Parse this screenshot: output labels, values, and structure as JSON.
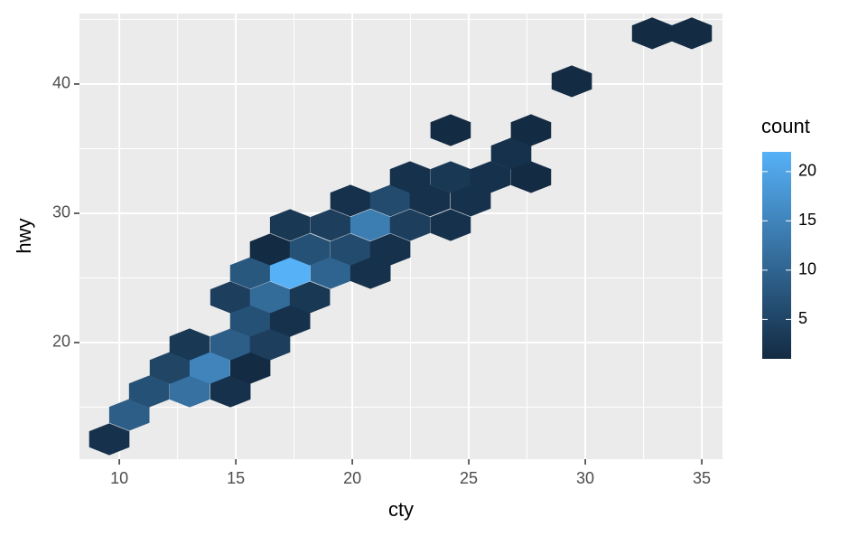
{
  "chart_data": {
    "type": "hexbin",
    "x_label": "cty",
    "y_label": "hwy",
    "legend_title": "count",
    "x": [
      9.57,
      10.43,
      11.28,
      13.02,
      14.77,
      12.17,
      13.88,
      15.62,
      13.02,
      14.77,
      16.47,
      15.62,
      17.33,
      14.77,
      16.47,
      18.18,
      15.62,
      17.33,
      19.07,
      20.78,
      16.47,
      18.18,
      19.92,
      21.63,
      17.33,
      19.07,
      20.78,
      22.48,
      24.22,
      19.92,
      21.63,
      23.33,
      25.08,
      22.48,
      24.22,
      25.93,
      27.67,
      26.82,
      24.22,
      27.67,
      29.42,
      32.87,
      34.57
    ],
    "y": [
      12.52,
      14.41,
      16.22,
      16.22,
      16.22,
      18.04,
      18.04,
      18.04,
      19.86,
      19.86,
      19.86,
      21.68,
      21.68,
      23.5,
      23.5,
      23.5,
      25.38,
      25.38,
      25.38,
      25.38,
      27.2,
      27.2,
      27.2,
      27.2,
      29.09,
      29.09,
      29.09,
      29.09,
      29.09,
      30.98,
      30.98,
      30.98,
      30.98,
      32.8,
      32.8,
      32.8,
      32.8,
      34.62,
      36.43,
      36.43,
      40.21,
      43.92,
      43.92
    ],
    "count": [
      2,
      9,
      7,
      12,
      2,
      5,
      15,
      1,
      3,
      9,
      4,
      7,
      2,
      4,
      11,
      3,
      8,
      22,
      10,
      2,
      1,
      7,
      6,
      2,
      3,
      4,
      14,
      4,
      2,
      2,
      6,
      2,
      2,
      2,
      3,
      2,
      1,
      2,
      1,
      1,
      1,
      1,
      1
    ],
    "xlim": [
      8.29,
      35.89
    ],
    "ylim": [
      10.98,
      45.45
    ],
    "xticks": [
      10,
      15,
      20,
      25,
      30,
      35
    ],
    "yticks": [
      20,
      30,
      40
    ],
    "fill_lim": [
      1,
      22
    ],
    "fill_ticks": [
      5,
      10,
      15,
      20
    ],
    "low_color": "#132B43",
    "high_color": "#56B1F7",
    "grid": true
  }
}
